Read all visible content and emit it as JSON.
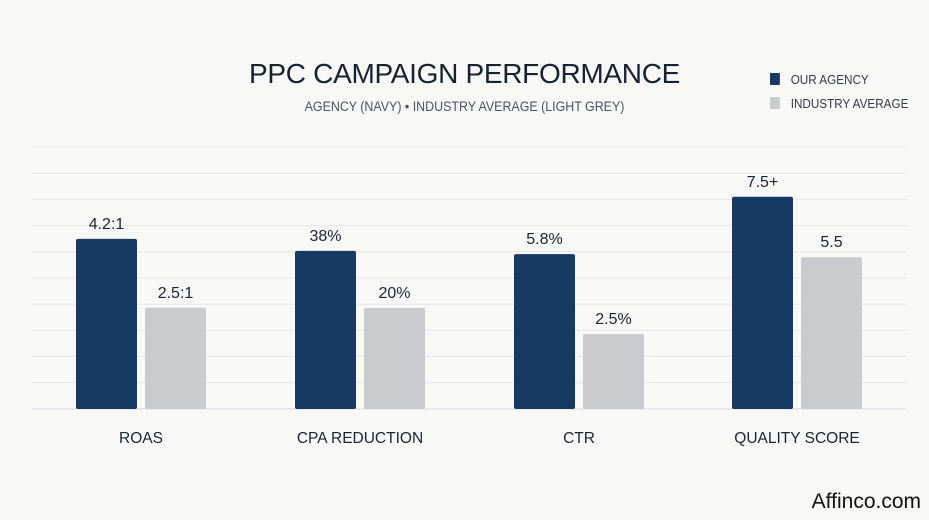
{
  "chart_data": {
    "type": "bar",
    "title": "PPC CAMPAIGN PERFORMANCE",
    "subtitle": "AGENCY (NAVY) • INDUSTRY AVERAGE (LIGHT GREY)",
    "categories": [
      "ROAS",
      "CPA REDUCTION",
      "CTR",
      "QUALITY SCORE"
    ],
    "series": [
      {
        "name": "OUR AGENCY",
        "color": "#163a63",
        "values": [
          4.2,
          38,
          5.8,
          7.5
        ],
        "labels": [
          "4.2:1",
          "38%",
          "5.8%",
          "7.5+"
        ]
      },
      {
        "name": "INDUSTRY AVERAGE",
        "color": "#c9cbcf",
        "values": [
          2.5,
          20,
          2.5,
          5.5
        ],
        "labels": [
          "2.5:1",
          "20%",
          "2.5%",
          "5.5"
        ]
      }
    ],
    "grid": true,
    "legend": "top-right"
  },
  "watermark": "Affinco.com"
}
